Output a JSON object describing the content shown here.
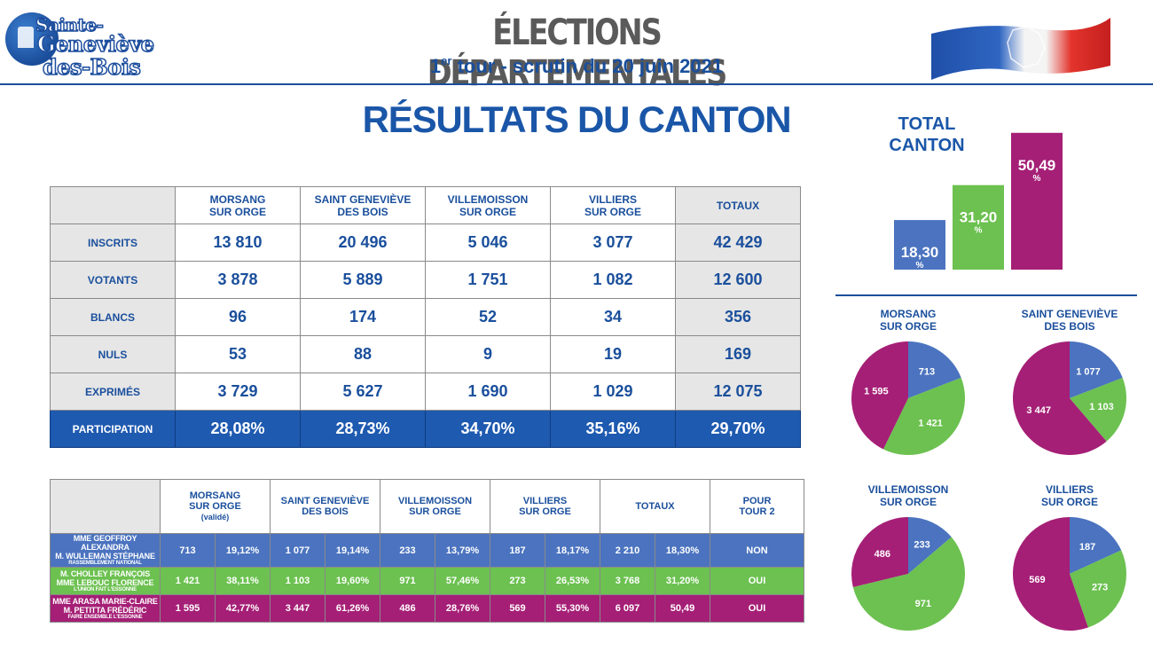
{
  "logo": {
    "line1": "Sainte-",
    "line2": "Geneviève",
    "line3": "des-Bois"
  },
  "header": {
    "title": "ÉLECTIONS DÉPARTEMENTALES",
    "subtitle_ord": "1",
    "subtitle_sup": "er",
    "subtitle_rest": " tour - scrutin du 20 juin 2021"
  },
  "section_title": "RÉSULTATS DU CANTON",
  "colors": {
    "blue": "#4b73bf",
    "green": "#6cc150",
    "magenta": "#a51f76",
    "navy": "#1a4f9c",
    "participation": "#1e5ab0"
  },
  "table1": {
    "columns": [
      "MORSANG\nSUR ORGE",
      "SAINT GENEVIÈVE\nDES BOIS",
      "VILLEMOISSON\nSUR ORGE",
      "VILLIERS\nSUR ORGE",
      "TOTAUX"
    ],
    "rows": [
      {
        "label": "INSCRITS",
        "values": [
          "13 810",
          "20 496",
          "5 046",
          "3 077",
          "42 429"
        ]
      },
      {
        "label": "VOTANTS",
        "values": [
          "3 878",
          "5 889",
          "1 751",
          "1 082",
          "12 600"
        ]
      },
      {
        "label": "BLANCS",
        "values": [
          "96",
          "174",
          "52",
          "34",
          "356"
        ]
      },
      {
        "label": "NULS",
        "values": [
          "53",
          "88",
          "9",
          "19",
          "169"
        ]
      },
      {
        "label": "EXPRIMÉS",
        "values": [
          "3 729",
          "5 627",
          "1 690",
          "1 029",
          "12 075"
        ]
      },
      {
        "label": "PARTICIPATION",
        "values": [
          "28,08%",
          "28,73%",
          "34,70%",
          "35,16%",
          "29,70%"
        ]
      }
    ]
  },
  "table2": {
    "columns": [
      {
        "label": "MORSANG\nSUR ORGE",
        "note": "(validé)"
      },
      {
        "label": "SAINT GENEVIÈVE\nDES BOIS",
        "note": ""
      },
      {
        "label": "VILLEMOISSON\nSUR ORGE",
        "note": ""
      },
      {
        "label": "VILLIERS\nSUR ORGE",
        "note": ""
      },
      {
        "label": "TOTAUX",
        "note": ""
      },
      {
        "label": "POUR\nTOUR 2",
        "note": ""
      }
    ],
    "rows": [
      {
        "cand1": "MME GEOFFROY ALEXANDRA",
        "cand2": "M. WULLEMAN STÉPHANE",
        "party": "RASSEMBLEMENT NATIONAL",
        "cells": [
          "713",
          "19,12%",
          "1 077",
          "19,14%",
          "233",
          "13,79%",
          "187",
          "18,17%",
          "2 210",
          "18,30%"
        ],
        "tour2": "NON"
      },
      {
        "cand1": "M. CHOLLEY FRANÇOIS",
        "cand2": "MME LEBOUC FLORENCE",
        "party": "L'UNION FAIT L'ESSONNE",
        "cells": [
          "1 421",
          "38,11%",
          "1 103",
          "19,60%",
          "971",
          "57,46%",
          "273",
          "26,53%",
          "3 768",
          "31,20%"
        ],
        "tour2": "OUI"
      },
      {
        "cand1": "MME ARASA MARIE-CLAIRE",
        "cand2": "M. PETITTA FRÉDÉRIC",
        "party": "FAIRE ENSEMBLE L'ESSONNE",
        "cells": [
          "1 595",
          "42,77%",
          "3 447",
          "61,26%",
          "486",
          "28,76%",
          "569",
          "55,30%",
          "6 097",
          "50,49"
        ],
        "tour2": "OUI"
      }
    ]
  },
  "chart_data": [
    {
      "type": "bar",
      "title": "TOTAL\nCANTON",
      "categories": [
        "",
        "",
        ""
      ],
      "values": [
        18.3,
        31.2,
        50.49
      ],
      "labels": [
        "18,30",
        "31,20",
        "50,49"
      ],
      "unit": "%",
      "colors": [
        "#4b73bf",
        "#6cc150",
        "#a51f76"
      ],
      "ylim": [
        0,
        55
      ]
    },
    {
      "type": "pie",
      "title": "MORSANG\nSUR ORGE",
      "values": [
        713,
        1421,
        1595
      ],
      "labels": [
        "713",
        "1 421",
        "1 595"
      ],
      "colors": [
        "#4b73bf",
        "#6cc150",
        "#a51f76"
      ]
    },
    {
      "type": "pie",
      "title": "SAINT GENEVIÈVE\nDES BOIS",
      "values": [
        1077,
        1103,
        3447
      ],
      "labels": [
        "1 077",
        "1 103",
        "3 447"
      ],
      "colors": [
        "#4b73bf",
        "#6cc150",
        "#a51f76"
      ]
    },
    {
      "type": "pie",
      "title": "VILLEMOISSON\nSUR ORGE",
      "values": [
        233,
        971,
        486
      ],
      "labels": [
        "233",
        "971",
        "486"
      ],
      "colors": [
        "#4b73bf",
        "#6cc150",
        "#a51f76"
      ]
    },
    {
      "type": "pie",
      "title": "VILLIERS\nSUR ORGE",
      "values": [
        187,
        273,
        569
      ],
      "labels": [
        "187",
        "273",
        "569"
      ],
      "colors": [
        "#4b73bf",
        "#6cc150",
        "#a51f76"
      ]
    }
  ]
}
